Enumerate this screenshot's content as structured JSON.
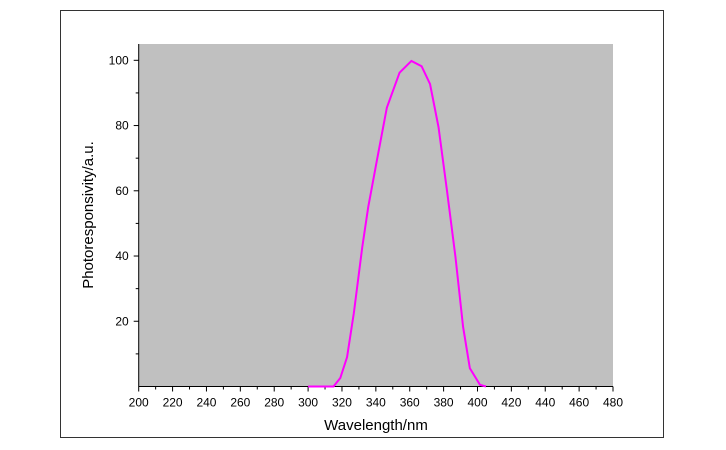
{
  "chart_data": {
    "type": "line",
    "xlabel": "Wavelength/nm",
    "ylabel": "Photoresponsivity/a.u.",
    "xlim": [
      200,
      480
    ],
    "ylim": [
      0,
      105
    ],
    "xticks": [
      200,
      220,
      240,
      260,
      280,
      300,
      320,
      340,
      360,
      380,
      400,
      420,
      440,
      460,
      480
    ],
    "yticks": [
      20,
      40,
      60,
      80,
      100
    ],
    "grid": false,
    "background_color": "#c0c0c0",
    "series": [
      {
        "color": "#ff00ff",
        "x": [
          300,
          308,
          315,
          319,
          323,
          327,
          332,
          335.5,
          340.5,
          346.5,
          354,
          361,
          367,
          372,
          377,
          382,
          387,
          391.5,
          395.5,
          401.5,
          405
        ],
        "y": [
          0,
          0,
          0,
          2.6,
          9,
          22.5,
          42.8,
          55,
          69,
          85.5,
          96.2,
          99.8,
          98.2,
          92.7,
          79.5,
          60,
          39.7,
          18.3,
          5.6,
          0.5,
          0
        ]
      }
    ]
  }
}
